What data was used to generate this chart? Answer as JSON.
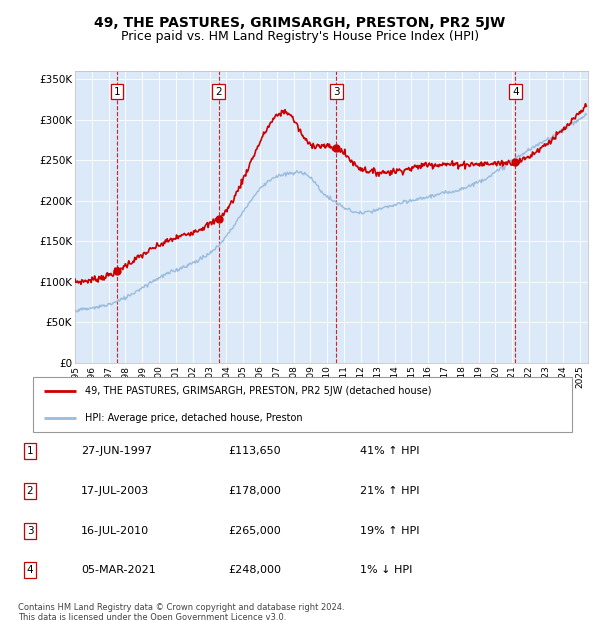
{
  "title": "49, THE PASTURES, GRIMSARGH, PRESTON, PR2 5JW",
  "subtitle": "Price paid vs. HM Land Registry's House Price Index (HPI)",
  "ylim": [
    0,
    360000
  ],
  "yticks": [
    0,
    50000,
    100000,
    150000,
    200000,
    250000,
    300000,
    350000
  ],
  "ytick_labels": [
    "£0",
    "£50K",
    "£100K",
    "£150K",
    "£200K",
    "£250K",
    "£300K",
    "£350K"
  ],
  "background_color": "#dce9f8",
  "sale_dates_num": [
    1997.49,
    2003.54,
    2010.54,
    2021.18
  ],
  "sale_prices": [
    113650,
    178000,
    265000,
    248000
  ],
  "sale_labels": [
    "1",
    "2",
    "3",
    "4"
  ],
  "vline_color": "#cc0000",
  "red_line_color": "#cc0000",
  "blue_line_color": "#99bbdd",
  "legend_entry1": "49, THE PASTURES, GRIMSARGH, PRESTON, PR2 5JW (detached house)",
  "legend_entry2": "HPI: Average price, detached house, Preston",
  "table_rows": [
    [
      "1",
      "27-JUN-1997",
      "£113,650",
      "41% ↑ HPI"
    ],
    [
      "2",
      "17-JUL-2003",
      "£178,000",
      "21% ↑ HPI"
    ],
    [
      "3",
      "16-JUL-2010",
      "£265,000",
      "19% ↑ HPI"
    ],
    [
      "4",
      "05-MAR-2021",
      "£248,000",
      "1% ↓ HPI"
    ]
  ],
  "footer": "Contains HM Land Registry data © Crown copyright and database right 2024.\nThis data is licensed under the Open Government Licence v3.0.",
  "title_fontsize": 10,
  "subtitle_fontsize": 9,
  "red_anchors_x": [
    1995,
    1997.0,
    1997.49,
    2000,
    2003.54,
    2007.5,
    2009.0,
    2010.54,
    2012,
    2013,
    2015,
    2016,
    2018,
    2021.18,
    2023,
    2025.3
  ],
  "red_anchors_y": [
    100000,
    108000,
    113650,
    145000,
    178000,
    310000,
    270000,
    265000,
    240000,
    235000,
    240000,
    245000,
    245000,
    248000,
    270000,
    315000
  ],
  "blue_anchors_x": [
    1995,
    1997,
    2000,
    2003,
    2007.0,
    2008.5,
    2010,
    2012,
    2014,
    2016,
    2018,
    2020,
    2021,
    2023,
    2025.3
  ],
  "blue_anchors_y": [
    65000,
    72000,
    105000,
    135000,
    230000,
    235000,
    205000,
    185000,
    195000,
    205000,
    215000,
    235000,
    250000,
    275000,
    305000
  ],
  "xlim": [
    1995,
    2025.5
  ],
  "xtick_years": [
    1995,
    1996,
    1997,
    1998,
    1999,
    2000,
    2001,
    2002,
    2003,
    2004,
    2005,
    2006,
    2007,
    2008,
    2009,
    2010,
    2011,
    2012,
    2013,
    2014,
    2015,
    2016,
    2017,
    2018,
    2019,
    2020,
    2021,
    2022,
    2023,
    2024,
    2025
  ]
}
